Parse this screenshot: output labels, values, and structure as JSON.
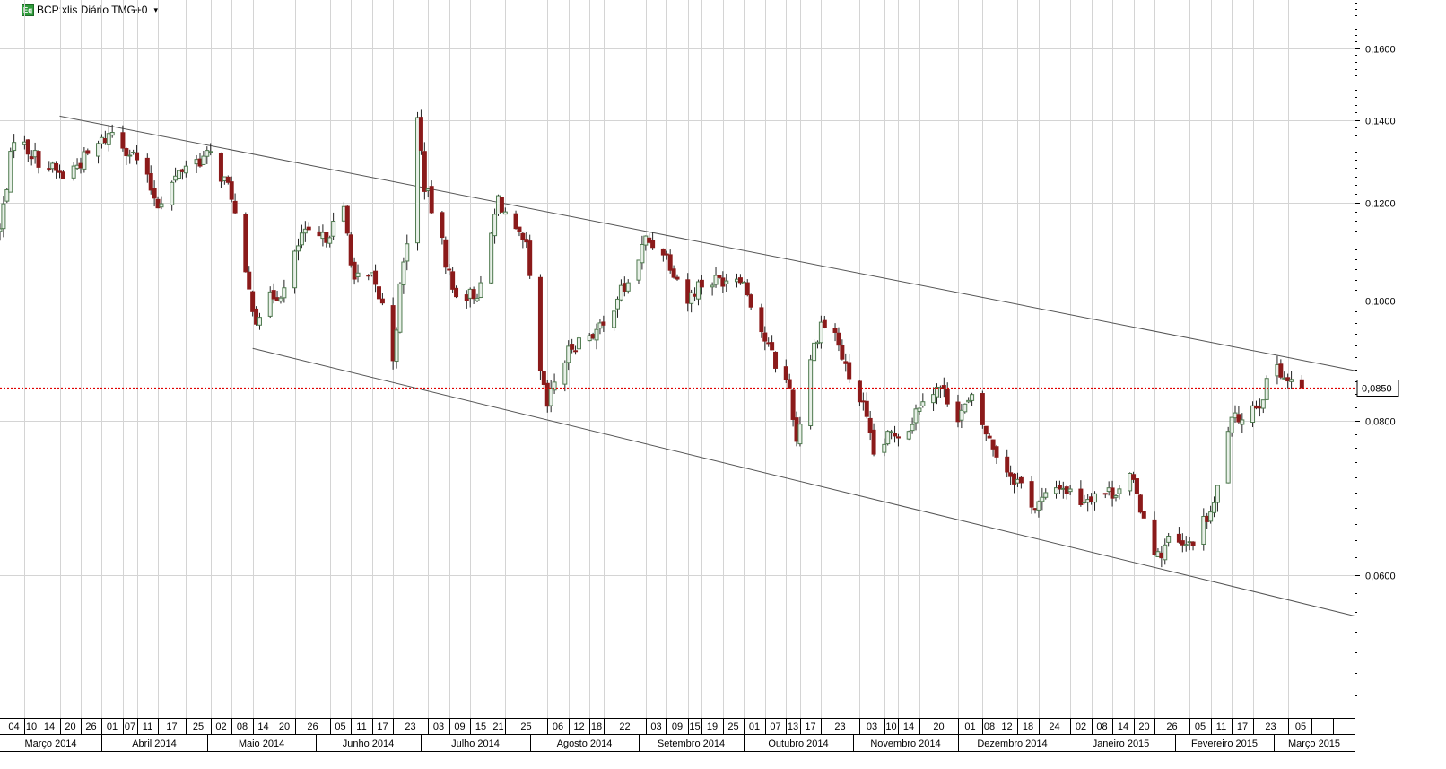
{
  "header": {
    "icon_label": "Eq",
    "title": "BCP:xlis Diário TMG+0",
    "dropdown_icon": "chevron-down-icon"
  },
  "colors": {
    "grid": "#d4d4d4",
    "up_candle": "#4f7a4f",
    "down_candle": "#8b1a1a",
    "wick": "#222222",
    "trendline": "#555555",
    "current_price_line": "#e00000"
  },
  "chart_data": {
    "type": "candlestick",
    "title": "BCP:xlis Diário TMG+0",
    "y_scale": "log",
    "y_range": [
      0.046,
      0.175
    ],
    "y_ticks": [
      0.16,
      0.14,
      0.12,
      0.1,
      0.08,
      0.06
    ],
    "y_tick_labels": [
      "0,1600",
      "0,1400",
      "0,1200",
      "0,1000",
      "0,0800",
      "0,0600"
    ],
    "current_price": 0.085,
    "current_price_label": "0,0850",
    "grid": true,
    "x_range": [
      "2014-03-03",
      "2015-03-24"
    ],
    "day_ticks": [
      {
        "date": "2014-03-04",
        "label": "04"
      },
      {
        "date": "2014-03-10",
        "label": "10"
      },
      {
        "date": "2014-03-14",
        "label": "14"
      },
      {
        "date": "2014-03-20",
        "label": "20"
      },
      {
        "date": "2014-03-26",
        "label": "26"
      },
      {
        "date": "2014-04-01",
        "label": "01"
      },
      {
        "date": "2014-04-07",
        "label": "07"
      },
      {
        "date": "2014-04-11",
        "label": "11"
      },
      {
        "date": "2014-04-17",
        "label": "17"
      },
      {
        "date": "2014-04-25",
        "label": "25"
      },
      {
        "date": "2014-05-02",
        "label": "02"
      },
      {
        "date": "2014-05-08",
        "label": "08"
      },
      {
        "date": "2014-05-14",
        "label": "14"
      },
      {
        "date": "2014-05-20",
        "label": "20"
      },
      {
        "date": "2014-05-26",
        "label": "26"
      },
      {
        "date": "2014-06-05",
        "label": "05"
      },
      {
        "date": "2014-06-11",
        "label": "11"
      },
      {
        "date": "2014-06-17",
        "label": "17"
      },
      {
        "date": "2014-06-23",
        "label": "23"
      },
      {
        "date": "2014-07-03",
        "label": "03"
      },
      {
        "date": "2014-07-09",
        "label": "09"
      },
      {
        "date": "2014-07-15",
        "label": "15"
      },
      {
        "date": "2014-07-21",
        "label": "21"
      },
      {
        "date": "2014-07-25",
        "label": "25"
      },
      {
        "date": "2014-08-06",
        "label": "06"
      },
      {
        "date": "2014-08-12",
        "label": "12"
      },
      {
        "date": "2014-08-18",
        "label": "18"
      },
      {
        "date": "2014-08-22",
        "label": "22"
      },
      {
        "date": "2014-09-03",
        "label": "03"
      },
      {
        "date": "2014-09-09",
        "label": "09"
      },
      {
        "date": "2014-09-15",
        "label": "15"
      },
      {
        "date": "2014-09-19",
        "label": "19"
      },
      {
        "date": "2014-09-25",
        "label": "25"
      },
      {
        "date": "2014-10-01",
        "label": "01"
      },
      {
        "date": "2014-10-07",
        "label": "07"
      },
      {
        "date": "2014-10-13",
        "label": "13"
      },
      {
        "date": "2014-10-17",
        "label": "17"
      },
      {
        "date": "2014-10-23",
        "label": "23"
      },
      {
        "date": "2014-11-03",
        "label": "03"
      },
      {
        "date": "2014-11-10",
        "label": "10"
      },
      {
        "date": "2014-11-14",
        "label": "14"
      },
      {
        "date": "2014-11-20",
        "label": "20"
      },
      {
        "date": "2014-12-01",
        "label": "01"
      },
      {
        "date": "2014-12-08",
        "label": "08"
      },
      {
        "date": "2014-12-12",
        "label": "12"
      },
      {
        "date": "2014-12-18",
        "label": "18"
      },
      {
        "date": "2014-12-24",
        "label": "24"
      },
      {
        "date": "2015-01-02",
        "label": "02"
      },
      {
        "date": "2015-01-08",
        "label": "08"
      },
      {
        "date": "2015-01-14",
        "label": "14"
      },
      {
        "date": "2015-01-20",
        "label": "20"
      },
      {
        "date": "2015-01-26",
        "label": "26"
      },
      {
        "date": "2015-02-05",
        "label": "05"
      },
      {
        "date": "2015-02-11",
        "label": "11"
      },
      {
        "date": "2015-02-17",
        "label": "17"
      },
      {
        "date": "2015-02-23",
        "label": "23"
      },
      {
        "date": "2015-03-05",
        "label": "05"
      }
    ],
    "month_ticks": [
      {
        "start": "2014-03-01",
        "label": "Março 2014"
      },
      {
        "start": "2014-04-01",
        "label": "Abril 2014"
      },
      {
        "start": "2014-05-01",
        "label": "Maio 2014"
      },
      {
        "start": "2014-06-01",
        "label": "Junho 2014"
      },
      {
        "start": "2014-07-01",
        "label": "Julho 2014"
      },
      {
        "start": "2014-08-01",
        "label": "Agosto 2014"
      },
      {
        "start": "2014-09-01",
        "label": "Setembro 2014"
      },
      {
        "start": "2014-10-01",
        "label": "Outubro 2014"
      },
      {
        "start": "2014-11-01",
        "label": "Novembro 2014"
      },
      {
        "start": "2014-12-01",
        "label": "Dezembro 2014"
      },
      {
        "start": "2015-01-01",
        "label": "Janeiro 2015"
      },
      {
        "start": "2015-02-01",
        "label": "Fevereiro 2015"
      },
      {
        "start": "2015-03-01",
        "label": "Março 2015"
      }
    ],
    "trend_lines": [
      {
        "start": [
          "2014-03-20",
          0.141
        ],
        "end": [
          "2015-03-24",
          0.0878
        ]
      },
      {
        "start": [
          "2014-05-14",
          0.0915
        ],
        "end": [
          "2015-03-24",
          0.0556
        ]
      }
    ],
    "close_path": [
      [
        "2014-03-03",
        0.114
      ],
      [
        "2014-03-07",
        0.136
      ],
      [
        "2014-03-14",
        0.13
      ],
      [
        "2014-03-21",
        0.126
      ],
      [
        "2014-03-28",
        0.131
      ],
      [
        "2014-04-04",
        0.137
      ],
      [
        "2014-04-11",
        0.13
      ],
      [
        "2014-04-17",
        0.12
      ],
      [
        "2014-04-25",
        0.129
      ],
      [
        "2014-05-02",
        0.131
      ],
      [
        "2014-05-08",
        0.122
      ],
      [
        "2014-05-12",
        0.104
      ],
      [
        "2014-05-15",
        0.097
      ],
      [
        "2014-05-20",
        0.101
      ],
      [
        "2014-05-23",
        0.102
      ],
      [
        "2014-05-28",
        0.113
      ],
      [
        "2014-06-03",
        0.112
      ],
      [
        "2014-06-09",
        0.118
      ],
      [
        "2014-06-12",
        0.104
      ],
      [
        "2014-06-17",
        0.104
      ],
      [
        "2014-06-20",
        0.099
      ],
      [
        "2014-06-23",
        0.09
      ],
      [
        "2014-06-25",
        0.102
      ],
      [
        "2014-06-27",
        0.112
      ],
      [
        "2014-06-30",
        0.14
      ],
      [
        "2014-07-02",
        0.124
      ],
      [
        "2014-07-07",
        0.111
      ],
      [
        "2014-07-10",
        0.102
      ],
      [
        "2014-07-15",
        0.101
      ],
      [
        "2014-07-18",
        0.102
      ],
      [
        "2014-07-23",
        0.121
      ],
      [
        "2014-07-28",
        0.113
      ],
      [
        "2014-07-31",
        0.11
      ],
      [
        "2014-08-04",
        0.087
      ],
      [
        "2014-08-06",
        0.082
      ],
      [
        "2014-08-08",
        0.086
      ],
      [
        "2014-08-13",
        0.092
      ],
      [
        "2014-08-18",
        0.094
      ],
      [
        "2014-08-22",
        0.095
      ],
      [
        "2014-08-26",
        0.101
      ],
      [
        "2014-08-29",
        0.103
      ],
      [
        "2014-09-03",
        0.112
      ],
      [
        "2014-09-08",
        0.11
      ],
      [
        "2014-09-11",
        0.106
      ],
      [
        "2014-09-15",
        0.1
      ],
      [
        "2014-09-18",
        0.103
      ],
      [
        "2014-09-24",
        0.104
      ],
      [
        "2014-09-30",
        0.105
      ],
      [
        "2014-10-03",
        0.1
      ],
      [
        "2014-10-07",
        0.093
      ],
      [
        "2014-10-10",
        0.089
      ],
      [
        "2014-10-14",
        0.085
      ],
      [
        "2014-10-16",
        0.077
      ],
      [
        "2014-10-20",
        0.09
      ],
      [
        "2014-10-23",
        0.096
      ],
      [
        "2014-10-27",
        0.094
      ],
      [
        "2014-10-30",
        0.088
      ],
      [
        "2014-11-04",
        0.082
      ],
      [
        "2014-11-07",
        0.075
      ],
      [
        "2014-11-12",
        0.078
      ],
      [
        "2014-11-17",
        0.079
      ],
      [
        "2014-11-21",
        0.084
      ],
      [
        "2014-11-26",
        0.085
      ],
      [
        "2014-12-01",
        0.081
      ],
      [
        "2014-12-05",
        0.083
      ],
      [
        "2014-12-10",
        0.077
      ],
      [
        "2014-12-15",
        0.073
      ],
      [
        "2014-12-19",
        0.071
      ],
      [
        "2014-12-23",
        0.068
      ],
      [
        "2014-12-30",
        0.071
      ],
      [
        "2015-01-05",
        0.069
      ],
      [
        "2015-01-09",
        0.07
      ],
      [
        "2015-01-14",
        0.07
      ],
      [
        "2015-01-19",
        0.072
      ],
      [
        "2015-01-23",
        0.067
      ],
      [
        "2015-01-27",
        0.062
      ],
      [
        "2015-01-30",
        0.064
      ],
      [
        "2015-02-04",
        0.063
      ],
      [
        "2015-02-09",
        0.066
      ],
      [
        "2015-02-12",
        0.068
      ],
      [
        "2015-02-16",
        0.079
      ],
      [
        "2015-02-20",
        0.081
      ],
      [
        "2015-02-25",
        0.083
      ],
      [
        "2015-03-02",
        0.089
      ],
      [
        "2015-03-05",
        0.086
      ],
      [
        "2015-03-09",
        0.085
      ]
    ],
    "candle_seed": 7,
    "candle_range_pct": 0.025
  }
}
